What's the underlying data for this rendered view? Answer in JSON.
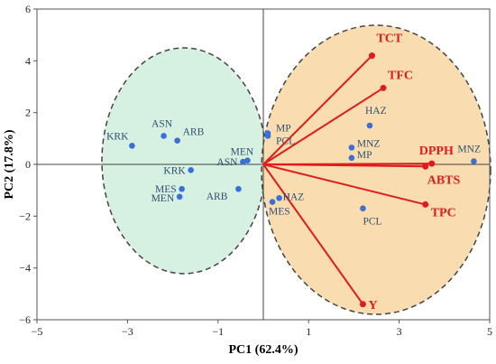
{
  "chart_data": {
    "type": "scatter",
    "subtype": "pca-biplot",
    "xlabel": "PC1 (62.4%)",
    "ylabel": "PC2 (17.8%)",
    "xlim": [
      -5,
      5
    ],
    "ylim": [
      -6,
      6
    ],
    "xticks": [
      -5,
      -3,
      -1,
      1,
      3,
      5
    ],
    "yticks": [
      -6,
      -4,
      -2,
      0,
      2,
      4,
      6
    ],
    "grid": false,
    "samples": [
      {
        "label": "KRK",
        "x": -2.9,
        "y": 0.72
      },
      {
        "label": "ASN",
        "x": -2.2,
        "y": 1.1
      },
      {
        "label": "ARB",
        "x": -1.9,
        "y": 0.92
      },
      {
        "label": "KRK",
        "x": -1.6,
        "y": -0.22
      },
      {
        "label": "MES",
        "x": -1.8,
        "y": -0.95
      },
      {
        "label": "MEN",
        "x": -1.85,
        "y": -1.25
      },
      {
        "label": "ARB",
        "x": -0.55,
        "y": -0.95
      },
      {
        "label": "ASN",
        "x": -0.45,
        "y": 0.1
      },
      {
        "label": "MEN",
        "x": -0.35,
        "y": 0.15
      },
      {
        "label": "MP",
        "x": 0.1,
        "y": 1.2
      },
      {
        "label": "PCL",
        "x": 0.1,
        "y": 1.1
      },
      {
        "label": "HAZ",
        "x": 0.35,
        "y": -1.3
      },
      {
        "label": "MES",
        "x": 0.2,
        "y": -1.45
      },
      {
        "label": "HAZ",
        "x": 2.35,
        "y": 1.5
      },
      {
        "label": "MNZ",
        "x": 1.95,
        "y": 0.65
      },
      {
        "label": "MP",
        "x": 1.95,
        "y": 0.25
      },
      {
        "label": "PCL",
        "x": 2.2,
        "y": -1.7
      },
      {
        "label": "MNZ",
        "x": 4.65,
        "y": 0.12
      }
    ],
    "loadings": [
      {
        "label": "TCT",
        "x": 2.4,
        "y": 4.2
      },
      {
        "label": "TFC",
        "x": 2.65,
        "y": 2.95
      },
      {
        "label": "DPPH",
        "x": 3.72,
        "y": 0.03
      },
      {
        "label": "ABTS",
        "x": 3.58,
        "y": -0.08
      },
      {
        "label": "TPC",
        "x": 3.58,
        "y": -1.55
      },
      {
        "label": "Y",
        "x": 2.2,
        "y": -5.4
      }
    ],
    "groups": [
      {
        "fill": "#d6f0e2",
        "members": "negative PC1"
      },
      {
        "fill": "#f9ddb0",
        "members": "positive PC1"
      }
    ],
    "colors": {
      "points": "#3a6fd8",
      "loadings": "#e11b1b",
      "sample_labels": "#2f4f6f"
    }
  }
}
